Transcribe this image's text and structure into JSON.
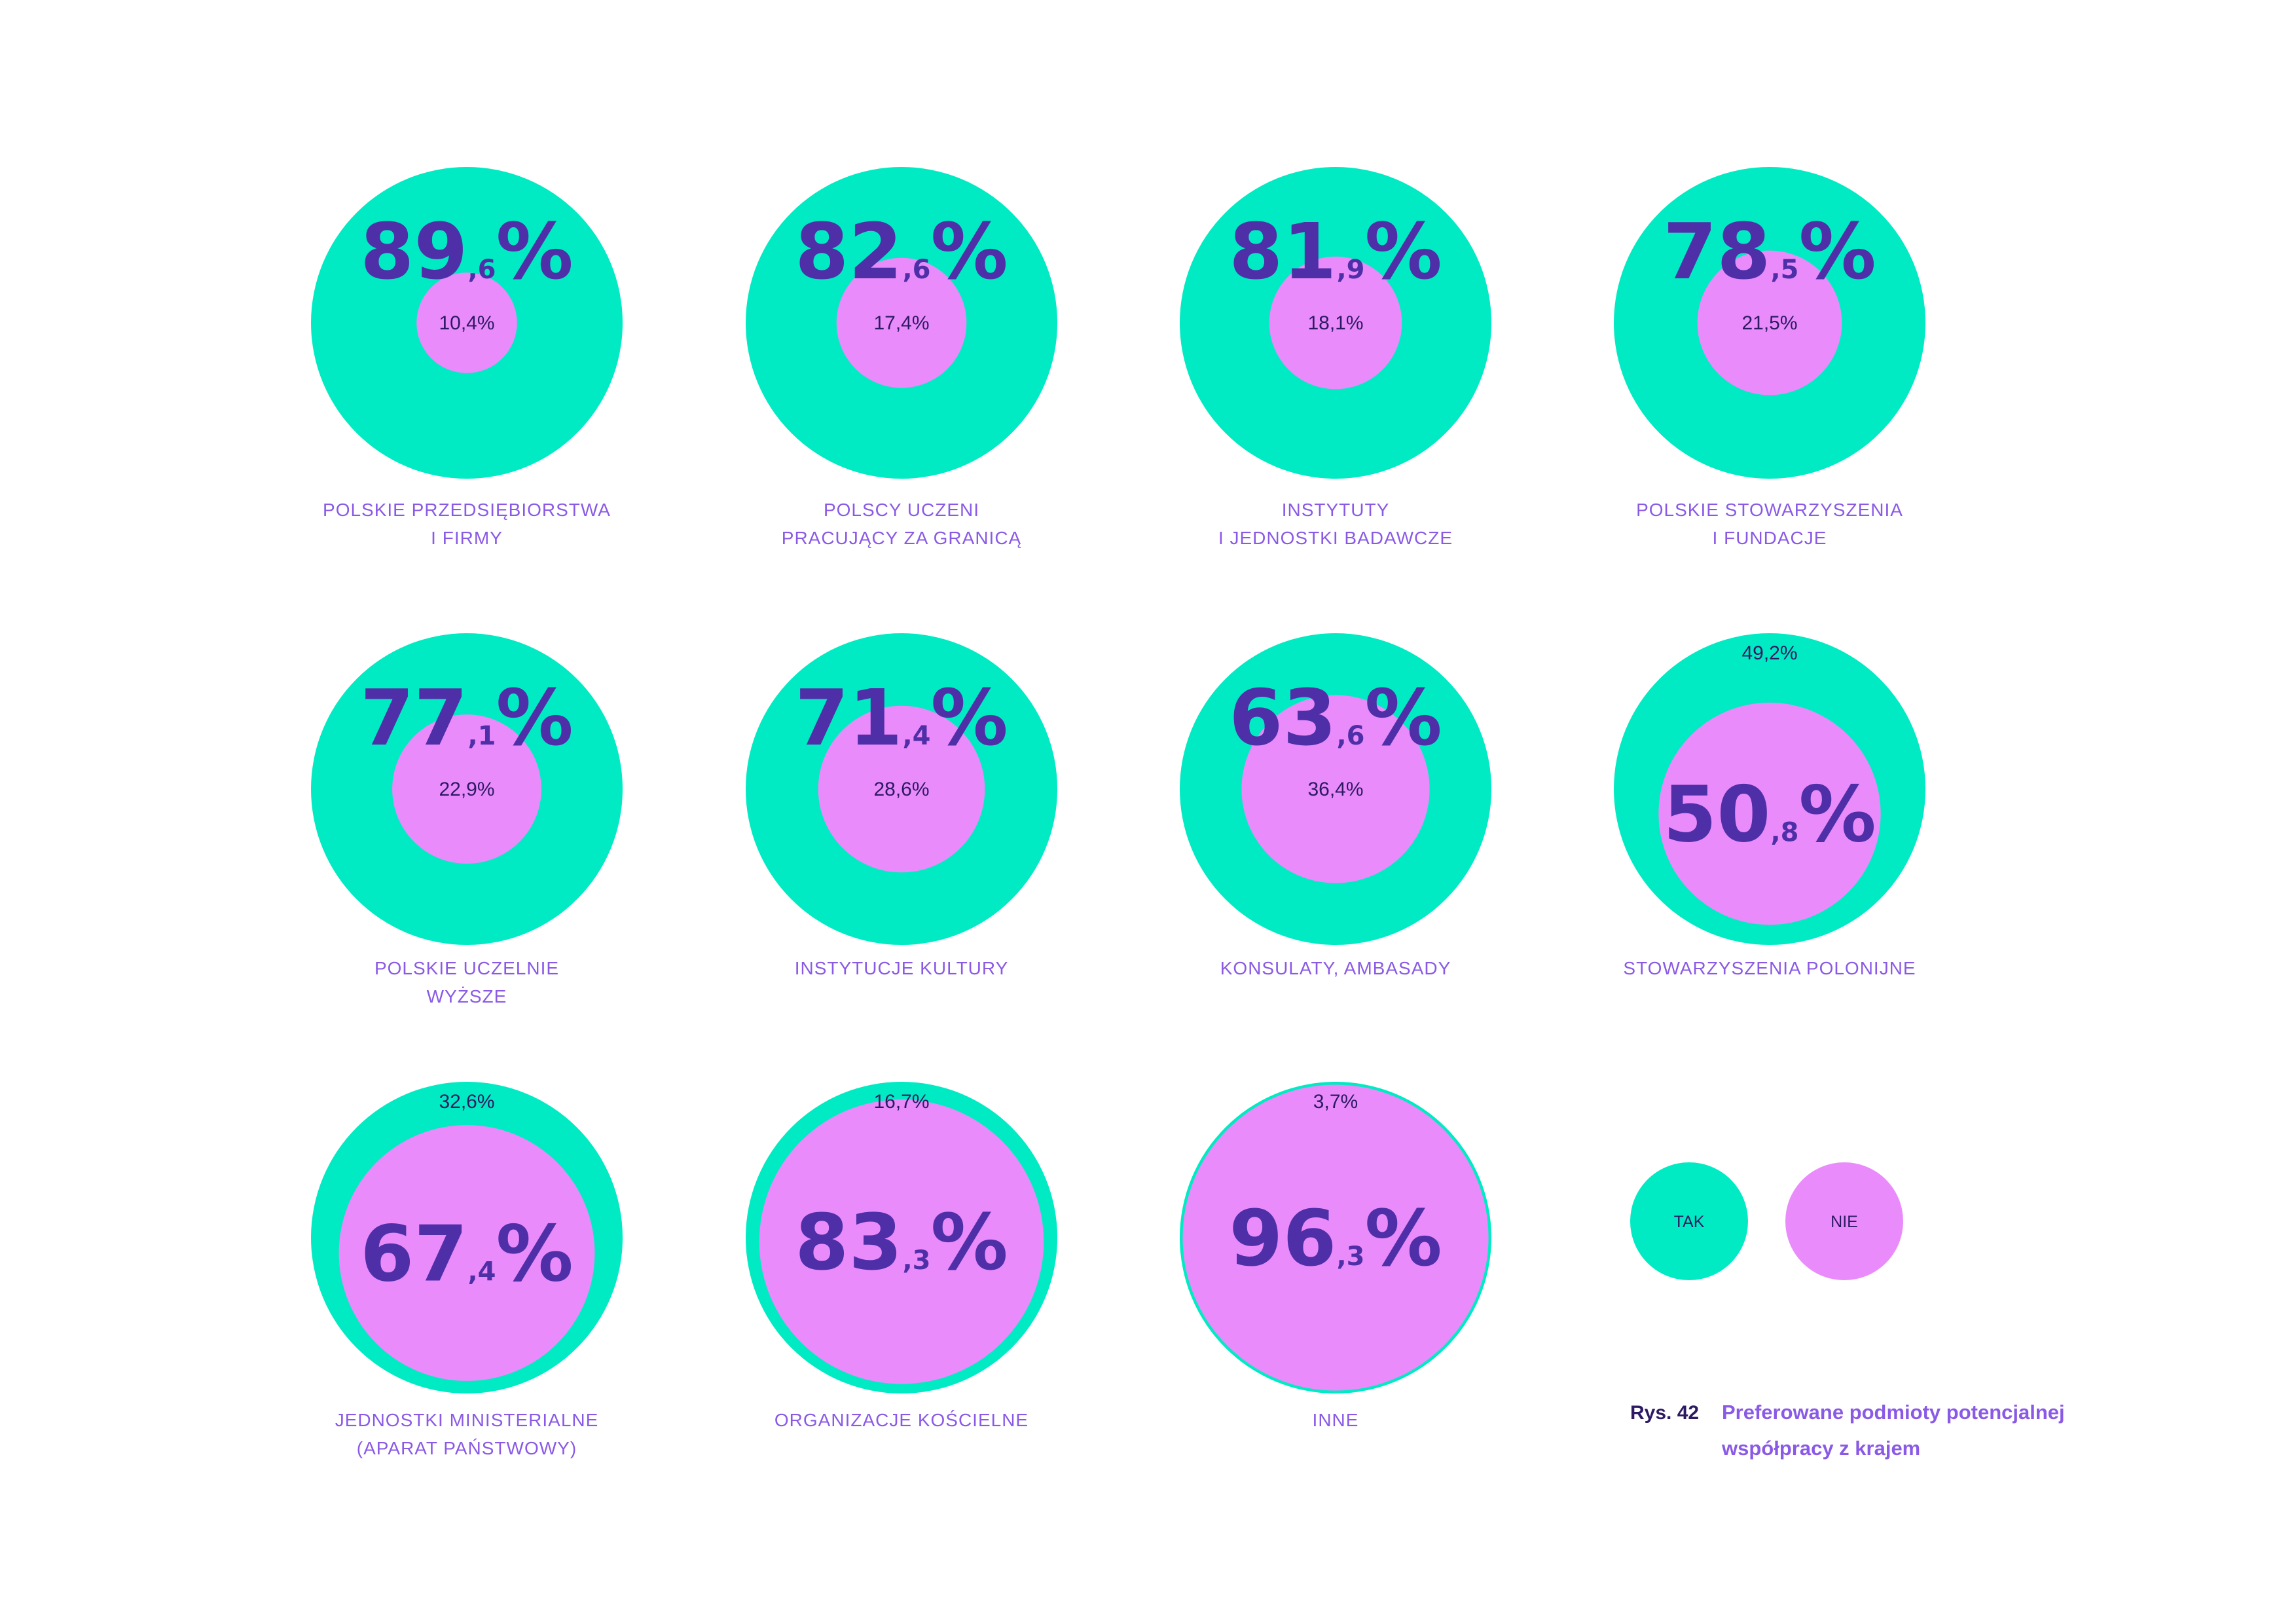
{
  "chart_data": {
    "type": "bubble-comparison",
    "series_colors": {
      "TAK": "#00EBC3",
      "NIE": "#E98BFB"
    },
    "text_colors": {
      "value": "#4F2FA8",
      "label": "#8A5AE6",
      "small": "#2D1A63"
    },
    "categories": [
      {
        "label": [
          "POLSKIE PRZEDSIĘBIORSTWA",
          "I FIRMY"
        ],
        "tak": 89.6,
        "nie": 10.4,
        "tak_label": "89,6%",
        "nie_label": "10,4%"
      },
      {
        "label": [
          "POLSCY UCZENI",
          "PRACUJĄCY ZA GRANICĄ"
        ],
        "tak": 82.6,
        "nie": 17.4,
        "tak_label": "82,6%",
        "nie_label": "17,4%"
      },
      {
        "label": [
          "INSTYTUTY",
          "I JEDNOSTKI BADAWCZE"
        ],
        "tak": 81.9,
        "nie": 18.1,
        "tak_label": "81,9%",
        "nie_label": "18,1%"
      },
      {
        "label": [
          "POLSKIE STOWARZYSZENIA",
          "I FUNDACJE"
        ],
        "tak": 78.5,
        "nie": 21.5,
        "tak_label": "78,5%",
        "nie_label": "21,5%"
      },
      {
        "label": [
          "POLSKIE UCZELNIE",
          "WYŻSZE"
        ],
        "tak": 77.1,
        "nie": 22.9,
        "tak_label": "77,1%",
        "nie_label": "22,9%"
      },
      {
        "label": [
          "INSTYTUCJE KULTURY"
        ],
        "tak": 71.4,
        "nie": 28.6,
        "tak_label": "71,4%",
        "nie_label": "28,6%"
      },
      {
        "label": [
          "KONSULATY, AMBASADY"
        ],
        "tak": 63.6,
        "nie": 36.4,
        "tak_label": "63,6%",
        "nie_label": "36,4%"
      },
      {
        "label": [
          "STOWARZYSZENIA POLONIJNE"
        ],
        "tak": 49.2,
        "nie": 50.8,
        "tak_label": "49,2%",
        "nie_label": "50,8%"
      },
      {
        "label": [
          "JEDNOSTKI MINISTERIALNE",
          "(APARAT PAŃSTWOWY)"
        ],
        "tak": 32.6,
        "nie": 67.4,
        "tak_label": "32,6%",
        "nie_label": "67,4%"
      },
      {
        "label": [
          "ORGANIZACJE KOŚCIELNE"
        ],
        "tak": 16.7,
        "nie": 83.3,
        "tak_label": "16,7%",
        "nie_label": "83,3%"
      },
      {
        "label": [
          "INNE"
        ],
        "tak": 3.7,
        "nie": 96.3,
        "tak_label": "3,7%",
        "nie_label": "96,3%"
      }
    ],
    "legend": [
      {
        "name": "TAK",
        "color": "#00EBC3"
      },
      {
        "name": "NIE",
        "color": "#E98BFB"
      }
    ],
    "caption": {
      "number": "Rys. 42",
      "title": [
        "Preferowane podmioty potencjalnej",
        "współpracy z krajem"
      ]
    }
  }
}
